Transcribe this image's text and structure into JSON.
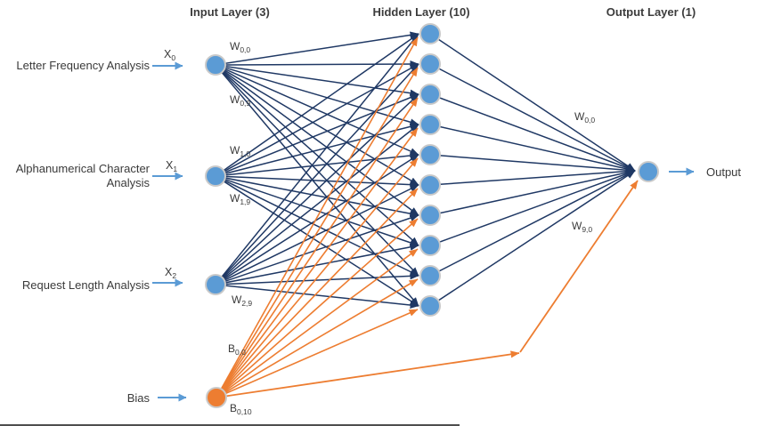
{
  "layers": {
    "input": {
      "title": "Input Layer (3)",
      "count": 3
    },
    "hidden": {
      "title": "Hidden Layer (10)",
      "count": 10
    },
    "output": {
      "title": "Output Layer (1)",
      "count": 1
    }
  },
  "inputs": [
    {
      "label": "Letter Frequency Analysis",
      "var_base": "X",
      "var_sub": "0"
    },
    {
      "label": "Alphanumerical Character Analysis",
      "var_base": "X",
      "var_sub": "1"
    },
    {
      "label": "Request Length Analysis",
      "var_base": "X",
      "var_sub": "2"
    }
  ],
  "bias": {
    "label": "Bias"
  },
  "edge_labels": {
    "w00": {
      "base": "W",
      "sub": "0,0"
    },
    "w09": {
      "base": "W",
      "sub": "0,9"
    },
    "w10": {
      "base": "W",
      "sub": "1,0"
    },
    "w19": {
      "base": "W",
      "sub": "1,9"
    },
    "w29": {
      "base": "W",
      "sub": "2,9"
    },
    "b00": {
      "base": "B",
      "sub": "0,0"
    },
    "b010": {
      "base": "B",
      "sub": "0,10"
    },
    "out_w00": {
      "base": "W",
      "sub": "0,0"
    },
    "out_w90": {
      "base": "W",
      "sub": "9,0"
    }
  },
  "output": {
    "label": "Output"
  },
  "colors": {
    "node_blue": "#5B9BD5",
    "bias_orange": "#ED7D31",
    "edge_navy": "#1F3864",
    "edge_orange": "#ED7D31",
    "arrow_blue": "#5B9BD5",
    "node_stroke": "#C9C9C9",
    "text": "#3A3A3A"
  }
}
